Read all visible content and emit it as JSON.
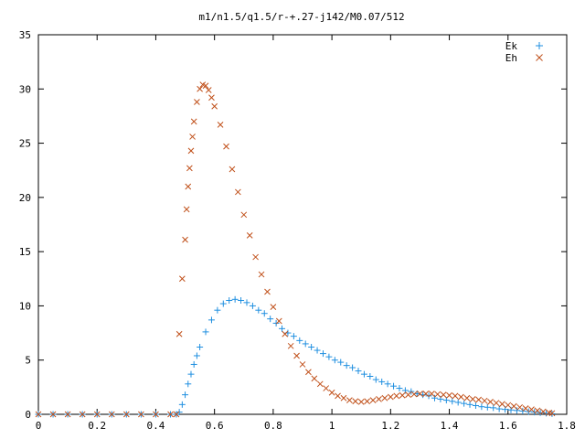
{
  "chart_data": {
    "type": "scatter",
    "title": "m1/n1.5/q1.5/r-+.27-j142/M0.07/512",
    "xlabel": "",
    "ylabel": "",
    "xlim": [
      0,
      1.8
    ],
    "ylim": [
      0,
      35
    ],
    "xticks": [
      {
        "value": 0,
        "label": "0"
      },
      {
        "value": 0.2,
        "label": "0.2"
      },
      {
        "value": 0.4,
        "label": "0.4"
      },
      {
        "value": 0.6,
        "label": "0.6"
      },
      {
        "value": 0.8,
        "label": "0.8"
      },
      {
        "value": 1.0,
        "label": "1"
      },
      {
        "value": 1.2,
        "label": "1.2"
      },
      {
        "value": 1.4,
        "label": "1.4"
      },
      {
        "value": 1.6,
        "label": "1.6"
      },
      {
        "value": 1.8,
        "label": "1.8"
      }
    ],
    "yticks": [
      {
        "value": 0,
        "label": "0"
      },
      {
        "value": 5,
        "label": "5"
      },
      {
        "value": 10,
        "label": "10"
      },
      {
        "value": 15,
        "label": "15"
      },
      {
        "value": 20,
        "label": "20"
      },
      {
        "value": 25,
        "label": "25"
      },
      {
        "value": 30,
        "label": "30"
      },
      {
        "value": 35,
        "label": "35"
      }
    ],
    "grid": false,
    "legend_position": "top-right",
    "series": [
      {
        "name": "Ek",
        "marker": "plus",
        "color": "#1f8fe0",
        "x": [
          0,
          0.05,
          0.1,
          0.15,
          0.2,
          0.25,
          0.3,
          0.35,
          0.4,
          0.45,
          0.47,
          0.48,
          0.49,
          0.5,
          0.51,
          0.52,
          0.53,
          0.54,
          0.55,
          0.57,
          0.59,
          0.61,
          0.63,
          0.65,
          0.67,
          0.69,
          0.71,
          0.73,
          0.75,
          0.77,
          0.79,
          0.81,
          0.83,
          0.85,
          0.87,
          0.89,
          0.91,
          0.93,
          0.95,
          0.97,
          0.99,
          1.01,
          1.03,
          1.05,
          1.07,
          1.09,
          1.11,
          1.13,
          1.15,
          1.17,
          1.19,
          1.21,
          1.23,
          1.25,
          1.27,
          1.29,
          1.31,
          1.33,
          1.35,
          1.37,
          1.39,
          1.41,
          1.43,
          1.45,
          1.47,
          1.49,
          1.51,
          1.53,
          1.55,
          1.57,
          1.59,
          1.61,
          1.63,
          1.65,
          1.67,
          1.69,
          1.71,
          1.73,
          1.75
        ],
        "y": [
          0,
          0,
          0,
          0,
          0,
          0,
          0,
          0,
          0,
          0,
          0,
          0.2,
          0.9,
          1.8,
          2.8,
          3.7,
          4.6,
          5.4,
          6.2,
          7.6,
          8.7,
          9.6,
          10.2,
          10.5,
          10.6,
          10.5,
          10.3,
          10.0,
          9.6,
          9.3,
          8.8,
          8.4,
          7.9,
          7.5,
          7.2,
          6.8,
          6.5,
          6.2,
          5.9,
          5.6,
          5.3,
          5.0,
          4.8,
          4.5,
          4.3,
          4.0,
          3.7,
          3.5,
          3.2,
          3.0,
          2.8,
          2.6,
          2.4,
          2.2,
          2.1,
          1.9,
          1.8,
          1.7,
          1.5,
          1.4,
          1.3,
          1.2,
          1.1,
          1.0,
          0.9,
          0.8,
          0.7,
          0.65,
          0.6,
          0.5,
          0.45,
          0.4,
          0.35,
          0.3,
          0.25,
          0.2,
          0.15,
          0.1,
          0.05
        ]
      },
      {
        "name": "Eh",
        "marker": "cross",
        "color": "#c0501a",
        "x": [
          0,
          0.05,
          0.1,
          0.15,
          0.2,
          0.25,
          0.3,
          0.35,
          0.4,
          0.45,
          0.47,
          0.48,
          0.49,
          0.5,
          0.505,
          0.51,
          0.515,
          0.52,
          0.525,
          0.53,
          0.54,
          0.55,
          0.56,
          0.57,
          0.58,
          0.59,
          0.6,
          0.62,
          0.64,
          0.66,
          0.68,
          0.7,
          0.72,
          0.74,
          0.76,
          0.78,
          0.8,
          0.82,
          0.84,
          0.86,
          0.88,
          0.9,
          0.92,
          0.94,
          0.96,
          0.98,
          1.0,
          1.02,
          1.04,
          1.06,
          1.08,
          1.1,
          1.12,
          1.14,
          1.16,
          1.18,
          1.2,
          1.22,
          1.24,
          1.26,
          1.28,
          1.3,
          1.32,
          1.34,
          1.36,
          1.38,
          1.4,
          1.42,
          1.44,
          1.46,
          1.48,
          1.5,
          1.52,
          1.54,
          1.56,
          1.58,
          1.6,
          1.62,
          1.64,
          1.66,
          1.68,
          1.7,
          1.72,
          1.74,
          1.75
        ],
        "y": [
          0,
          0,
          0,
          0,
          0,
          0,
          0,
          0,
          0,
          0,
          0,
          7.4,
          12.5,
          16.1,
          18.9,
          21.0,
          22.7,
          24.3,
          25.6,
          27.0,
          28.8,
          30.0,
          30.4,
          30.3,
          29.9,
          29.2,
          28.4,
          26.7,
          24.7,
          22.6,
          20.5,
          18.4,
          16.5,
          14.5,
          12.9,
          11.3,
          9.9,
          8.6,
          7.4,
          6.3,
          5.4,
          4.6,
          3.9,
          3.3,
          2.8,
          2.4,
          2.0,
          1.7,
          1.5,
          1.3,
          1.2,
          1.15,
          1.2,
          1.3,
          1.4,
          1.5,
          1.6,
          1.7,
          1.75,
          1.8,
          1.85,
          1.9,
          1.9,
          1.9,
          1.85,
          1.8,
          1.75,
          1.7,
          1.6,
          1.5,
          1.4,
          1.35,
          1.25,
          1.15,
          1.05,
          0.95,
          0.85,
          0.75,
          0.65,
          0.55,
          0.45,
          0.35,
          0.25,
          0.15,
          0.1
        ]
      }
    ]
  }
}
